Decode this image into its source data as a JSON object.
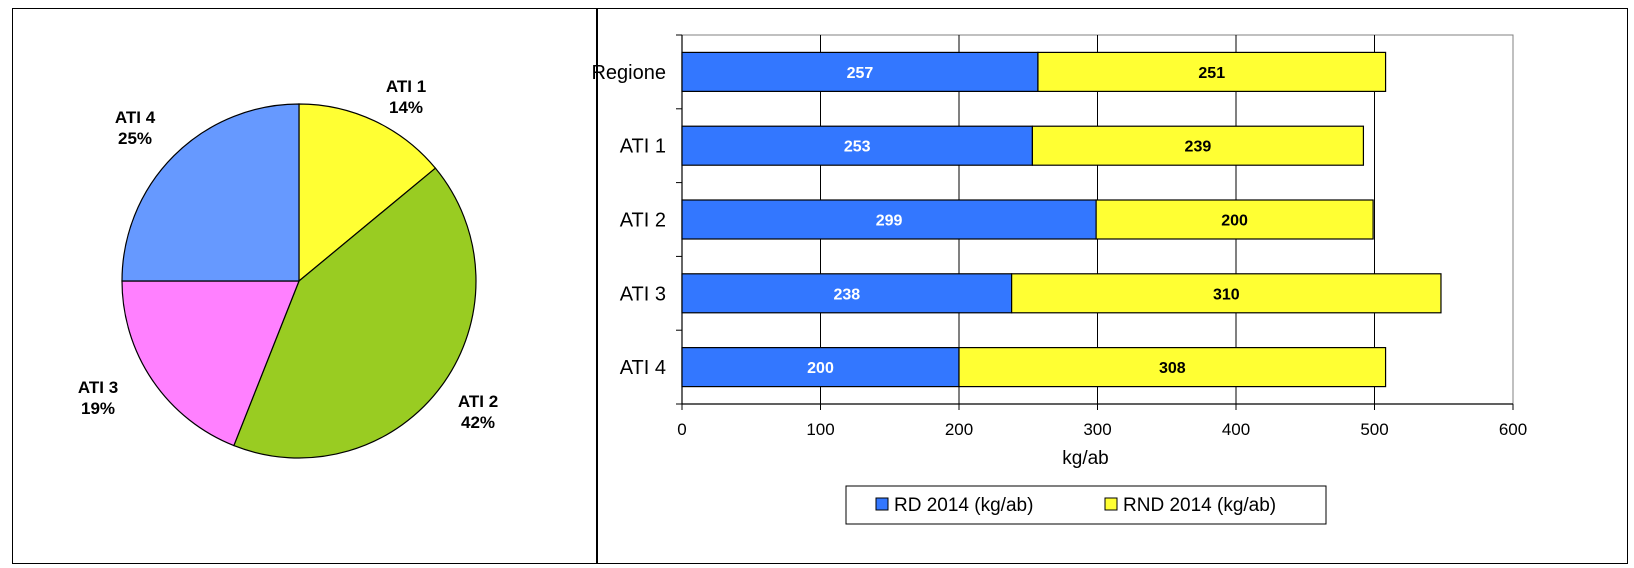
{
  "chart_data": [
    {
      "type": "pie",
      "slices": [
        {
          "label": "ATI 1",
          "value": 14,
          "pct_label": "14%",
          "color": "#FFFF33"
        },
        {
          "label": "ATI 2",
          "value": 42,
          "pct_label": "42%",
          "color": "#99CC22"
        },
        {
          "label": "ATI 3",
          "value": 19,
          "pct_label": "19%",
          "color": "#FF80FF"
        },
        {
          "label": "ATI 4",
          "value": 25,
          "pct_label": "25%",
          "color": "#6699FF"
        }
      ]
    },
    {
      "type": "bar",
      "orientation": "horizontal",
      "stacked": true,
      "categories": [
        "Regione",
        "ATI 1",
        "ATI 2",
        "ATI 3",
        "ATI 4"
      ],
      "series": [
        {
          "name": "RD 2014 (kg/ab)",
          "values": [
            257,
            253,
            299,
            238,
            200
          ],
          "color": "#3377FF",
          "label_color": "#ffffff"
        },
        {
          "name": "RND 2014 (kg/ab)",
          "values": [
            251,
            239,
            200,
            310,
            308
          ],
          "color": "#FFFF33",
          "label_color": "#000000"
        }
      ],
      "xlabel": "kg/ab",
      "xlim": [
        0,
        600
      ],
      "xticks": [
        0,
        100,
        200,
        300,
        400,
        500,
        600
      ],
      "grid": true,
      "legend_position": "bottom"
    }
  ]
}
